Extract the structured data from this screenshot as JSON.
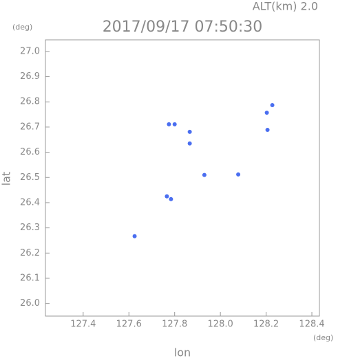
{
  "chart_data": {
    "type": "scatter",
    "title": "2017/09/17 07:50:30",
    "subtitle": "ALT(km) 2.0",
    "xlabel": "lon",
    "ylabel": "lat",
    "xunit": "(deg)",
    "yunit": "(deg)",
    "color": "#4a6ef0",
    "x": [
      128.227,
      128.203,
      128.206,
      127.775,
      127.8,
      127.866,
      127.866,
      127.93,
      128.078,
      127.766,
      127.784,
      127.625
    ],
    "y": [
      26.787,
      26.757,
      26.689,
      26.711,
      26.711,
      26.681,
      26.635,
      26.51,
      26.512,
      26.425,
      26.414,
      26.267
    ],
    "xlim": [
      127.235,
      128.433
    ],
    "ylim": [
      25.95,
      27.046
    ],
    "xticks": [
      127.4,
      127.6,
      127.8,
      {
        "value": 128.0,
        "label": "128.0"
      },
      128.2,
      128.4
    ],
    "yticks": [
      {
        "value": 26.0,
        "label": "26.0"
      },
      26.1,
      26.2,
      26.3,
      26.4,
      26.5,
      26.6,
      26.7,
      26.8,
      26.9,
      {
        "value": 27.0,
        "label": "27.0"
      }
    ]
  }
}
